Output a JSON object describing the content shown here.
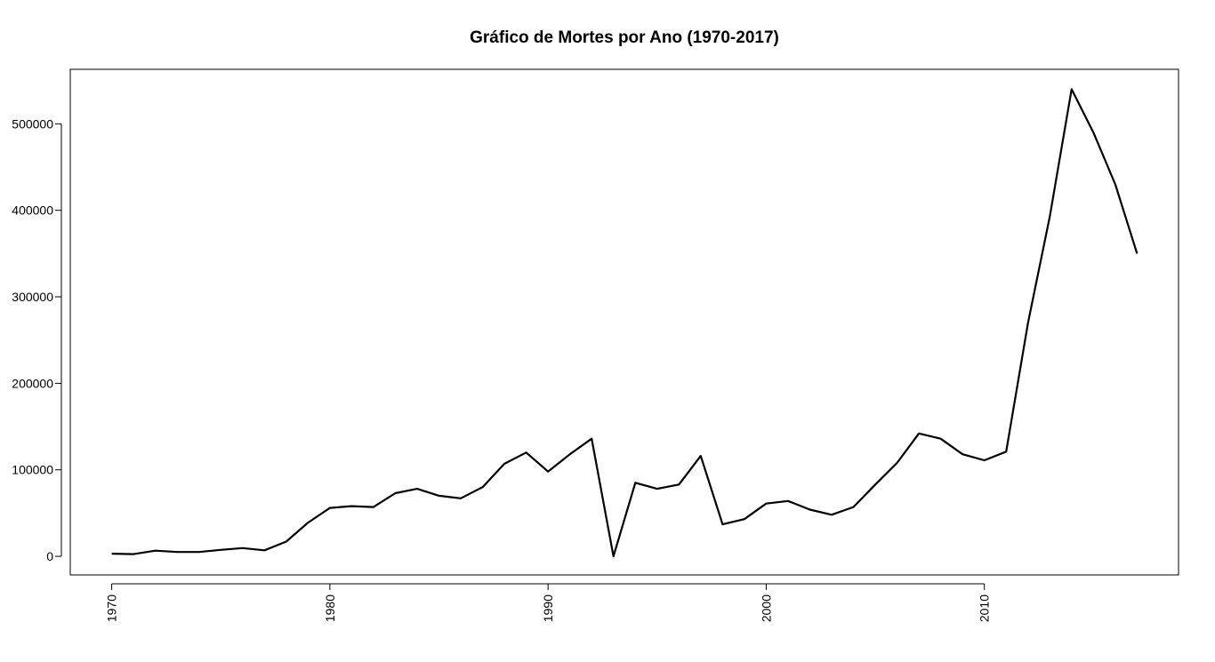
{
  "chart_data": {
    "type": "line",
    "title": "Gráfico de Mortes por Ano (1970-2017)",
    "xlabel": "",
    "ylabel": "",
    "xlim": [
      1968.1,
      2018.9
    ],
    "ylim": [
      -21500,
      563000
    ],
    "x_ticks": [
      1970,
      1980,
      1990,
      2000,
      2010
    ],
    "y_ticks": [
      0,
      100000,
      200000,
      300000,
      400000,
      500000
    ],
    "x_tick_labels": [
      "1970",
      "1980",
      "1990",
      "2000",
      "2010"
    ],
    "y_tick_labels": [
      "0",
      "100000",
      "200000",
      "300000",
      "400000",
      "500000"
    ],
    "grid": false,
    "color": "#000000",
    "series": [
      {
        "x": [
          1970,
          1971,
          1972,
          1973,
          1974,
          1975,
          1976,
          1977,
          1978,
          1979,
          1980,
          1981,
          1982,
          1983,
          1984,
          1985,
          1986,
          1987,
          1988,
          1989,
          1990,
          1991,
          1992,
          1993,
          1994,
          1995,
          1996,
          1997,
          1998,
          1999,
          2000,
          2001,
          2002,
          2003,
          2004,
          2005,
          2006,
          2007,
          2008,
          2009,
          2010,
          2011,
          2012,
          2013,
          2014,
          2015,
          2016,
          2017
        ],
        "values": [
          3000,
          2500,
          6500,
          5000,
          5000,
          7500,
          9500,
          7000,
          17000,
          39000,
          56000,
          58000,
          57000,
          73000,
          78000,
          70000,
          67000,
          80000,
          107000,
          120000,
          98000,
          118000,
          136000,
          0,
          85000,
          78000,
          83000,
          116000,
          37000,
          43000,
          61000,
          64000,
          54000,
          48000,
          57000,
          83000,
          108000,
          142000,
          136000,
          118000,
          111000,
          121000,
          270000,
          393000,
          540000,
          490000,
          430000,
          350000
        ]
      }
    ]
  }
}
